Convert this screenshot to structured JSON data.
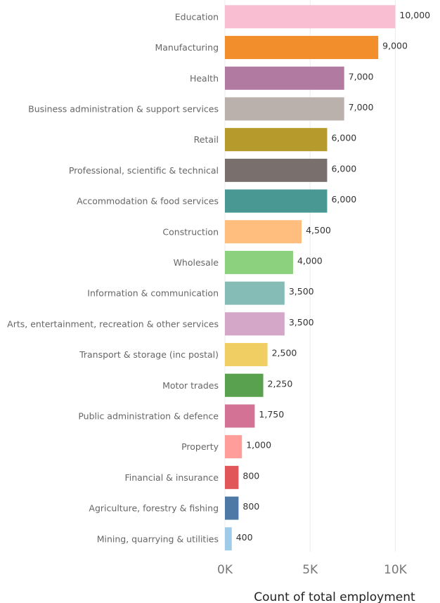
{
  "chart_data": {
    "type": "bar",
    "orientation": "horizontal",
    "categories": [
      "Education",
      "Manufacturing",
      "Health",
      "Business administration & support services",
      "Retail",
      "Professional, scientific & technical",
      "Accommodation & food services",
      "Construction",
      "Wholesale",
      "Information & communication",
      "Arts, entertainment, recreation & other services",
      "Transport & storage (inc postal)",
      "Motor trades",
      "Public administration & defence",
      "Property",
      "Financial & insurance",
      "Agriculture, forestry & fishing",
      "Mining, quarrying & utilities"
    ],
    "values": [
      10000,
      9000,
      7000,
      7000,
      6000,
      6000,
      6000,
      4500,
      4000,
      3500,
      3500,
      2500,
      2250,
      1750,
      1000,
      800,
      800,
      400
    ],
    "value_labels": [
      "10,000",
      "9,000",
      "7,000",
      "7,000",
      "6,000",
      "6,000",
      "6,000",
      "4,500",
      "4,000",
      "3,500",
      "3,500",
      "2,500",
      "2,250",
      "1,750",
      "1,000",
      "800",
      "800",
      "400"
    ],
    "colors": [
      "#f9bed2",
      "#f28e2b",
      "#b07aa1",
      "#bab0ac",
      "#b69a2b",
      "#79706e",
      "#499894",
      "#ffbe7d",
      "#8cd17d",
      "#86bcb6",
      "#d4a6c8",
      "#f1ce63",
      "#59a14f",
      "#d37295",
      "#ff9d9a",
      "#e15759",
      "#4e79a7",
      "#a0cbe8"
    ],
    "xlim": [
      0,
      12500
    ],
    "xticks": [
      0,
      5000,
      10000
    ],
    "xtick_labels": [
      "0K",
      "5K",
      "10K"
    ],
    "xlabel": "Count of total employment",
    "ylabel": "",
    "title": "",
    "grid": "vertical"
  }
}
